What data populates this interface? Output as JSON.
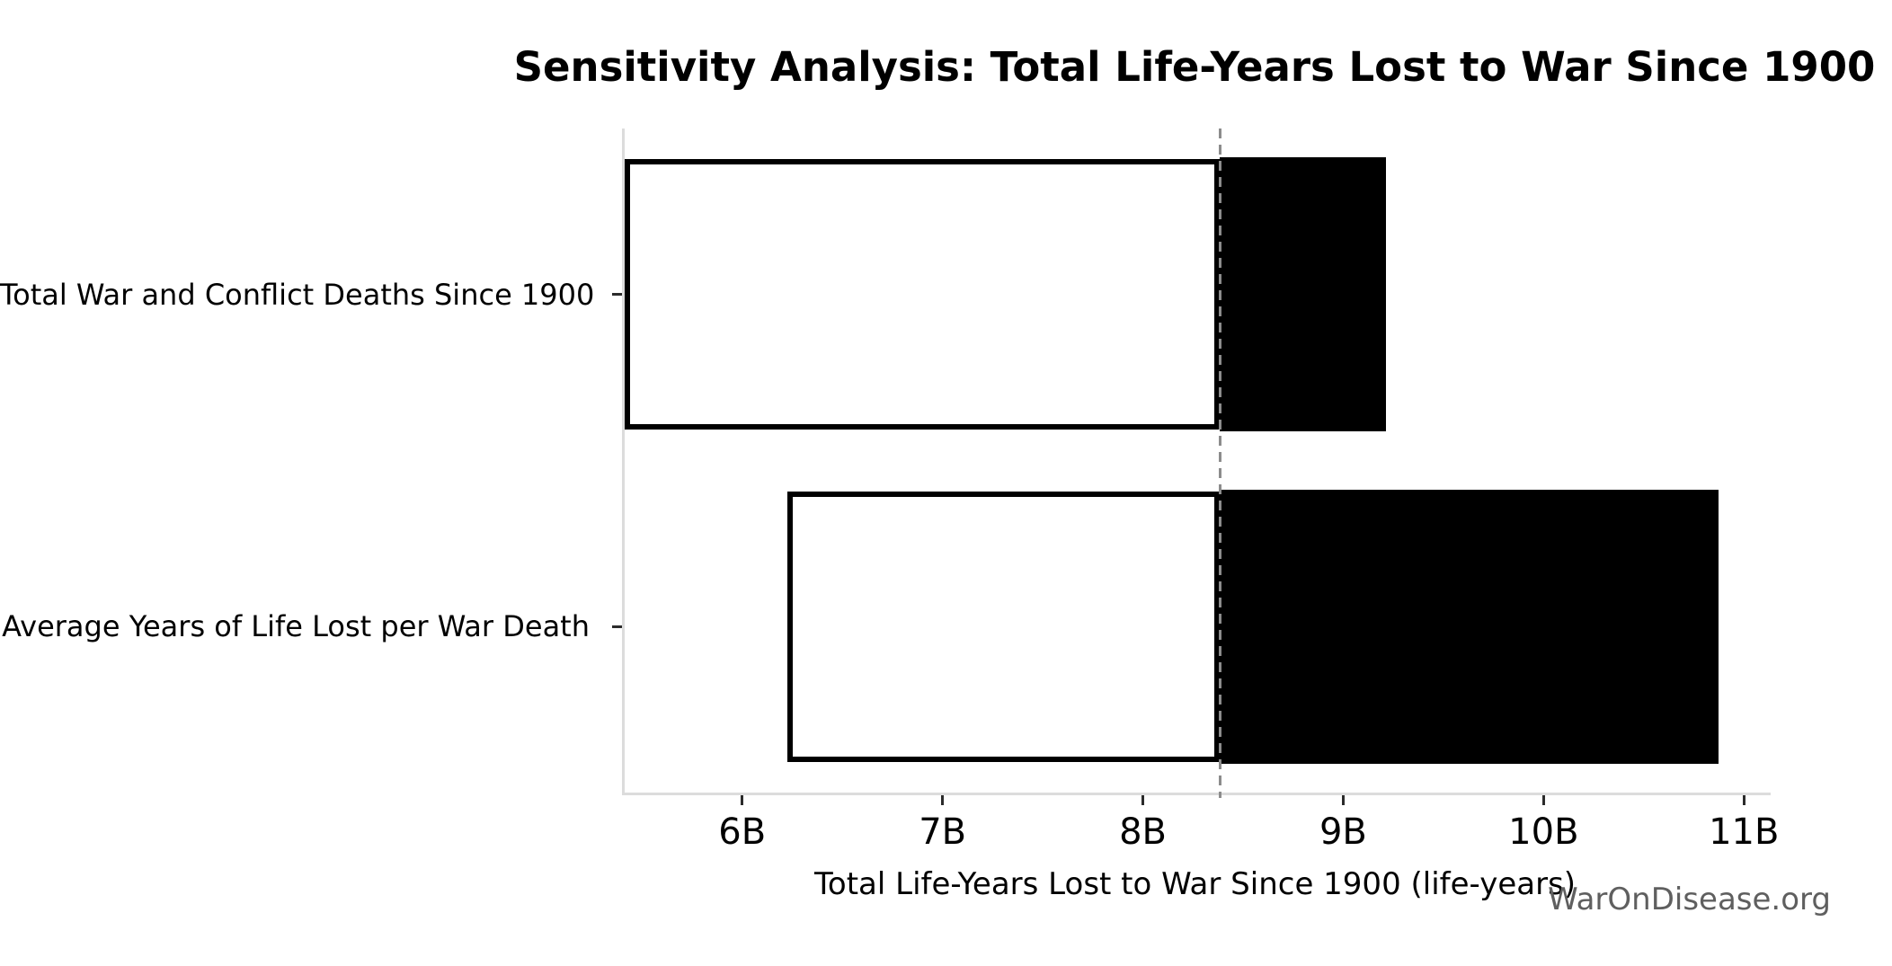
{
  "watermark": "WarOnDisease.org",
  "chart_data": {
    "type": "bar",
    "subtype": "tornado_sensitivity",
    "orientation": "horizontal",
    "title": "Sensitivity Analysis: Total Life-Years Lost to War Since 1900",
    "xlabel": "Total Life-Years Lost to War Since 1900 (life-years)",
    "unit": "billions of life-years",
    "categories": [
      "Total War and Conflict Deaths Since 1900",
      "Average Years of Life Lost per War Death"
    ],
    "bars": [
      {
        "label": "Total War and Conflict Deaths Since 1900",
        "low_B": 5.4,
        "high_B": 9.2
      },
      {
        "label": "Average Years of Life Lost per War Death",
        "low_B": 6.21,
        "high_B": 10.86
      }
    ],
    "baseline_B": 8.37,
    "xlim_B": [
      5.4,
      11.12
    ],
    "x_ticks": [
      {
        "value_B": 6,
        "label": "6B"
      },
      {
        "value_B": 7,
        "label": "7B"
      },
      {
        "value_B": 8,
        "label": "8B"
      },
      {
        "value_B": 9,
        "label": "9B"
      },
      {
        "value_B": 10,
        "label": "10B"
      },
      {
        "value_B": 11,
        "label": "11B"
      }
    ],
    "grid": false,
    "legend": false,
    "styles": {
      "low_segment_fill": "#ffffff",
      "high_segment_fill": "#000000",
      "bar_border_color": "#000000",
      "baseline_line_color": "#8c8c8c",
      "baseline_line_style": "dashed",
      "spine_color": "#dcdcdc",
      "tick_color": "#2b2b2b",
      "text_color": "#000000",
      "watermark_color": "#5f5f5f"
    }
  }
}
